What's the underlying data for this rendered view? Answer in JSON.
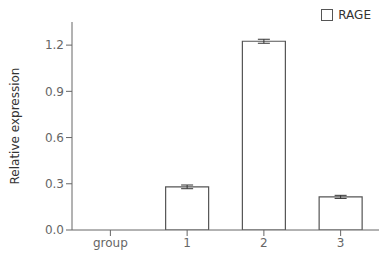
{
  "chart_data": {
    "type": "bar",
    "categories": [
      "group",
      "1",
      "2",
      "3"
    ],
    "series": [
      {
        "name": "RAGE",
        "color": "#ffffff",
        "values": [
          null,
          0.28,
          1.225,
          0.215
        ],
        "errors": [
          null,
          0.012,
          0.013,
          0.01
        ]
      }
    ],
    "ylabel": "Relative expression",
    "ylim": [
      0.0,
      1.35
    ],
    "yticks": [
      {
        "value": 0.0,
        "label": "0.0"
      },
      0.3,
      0.6,
      0.9,
      1.2
    ],
    "grid": false,
    "legend": "upper right"
  }
}
